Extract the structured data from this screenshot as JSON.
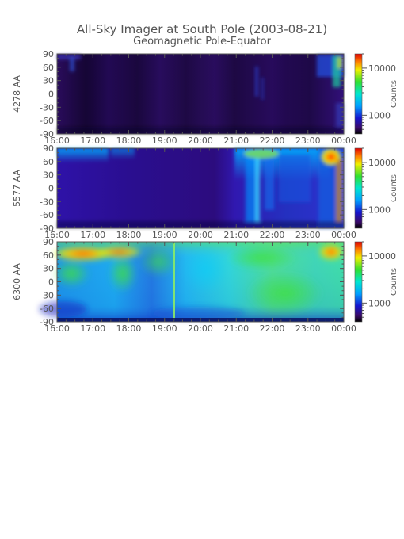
{
  "title": "All-Sky Imager at South Pole (2003-08-21)",
  "subtitle": "Geomagnetic Pole-Equator",
  "colors": {
    "axis": "#555555",
    "background": "#ffffff"
  },
  "chart_data": [
    {
      "type": "heatmap",
      "ylabel": "4278 AA",
      "x_ticks": [
        "16:00",
        "17:00",
        "18:00",
        "19:00",
        "20:00",
        "21:00",
        "22:00",
        "23:00",
        "00:00"
      ],
      "y_ticks": [
        90,
        60,
        30,
        0,
        -30,
        -60,
        -90
      ],
      "ylim": [
        -90,
        90
      ],
      "colorbar": {
        "label": "Counts",
        "ticks": [
          10000,
          1000
        ],
        "scale": "log",
        "range": [
          400,
          20000
        ]
      }
    },
    {
      "type": "heatmap",
      "ylabel": "5577 AA",
      "x_ticks": [
        "16:00",
        "17:00",
        "18:00",
        "19:00",
        "20:00",
        "21:00",
        "22:00",
        "23:00",
        "00:00"
      ],
      "y_ticks": [
        90,
        60,
        30,
        0,
        -30,
        -60,
        -90
      ],
      "ylim": [
        -90,
        90
      ],
      "colorbar": {
        "label": "Counts",
        "ticks": [
          10000,
          1000
        ],
        "scale": "log",
        "range": [
          400,
          20000
        ]
      }
    },
    {
      "type": "heatmap",
      "ylabel": "6300 AA",
      "x_ticks": [
        "16:00",
        "17:00",
        "18:00",
        "19:00",
        "20:00",
        "21:00",
        "22:00",
        "23:00",
        "00:00"
      ],
      "y_ticks": [
        90,
        60,
        30,
        0,
        -30,
        -60,
        -90
      ],
      "ylim": [
        -90,
        90
      ],
      "colorbar": {
        "label": "Counts",
        "ticks": [
          10000,
          1000
        ],
        "scale": "log",
        "range": [
          400,
          20000
        ]
      }
    }
  ]
}
